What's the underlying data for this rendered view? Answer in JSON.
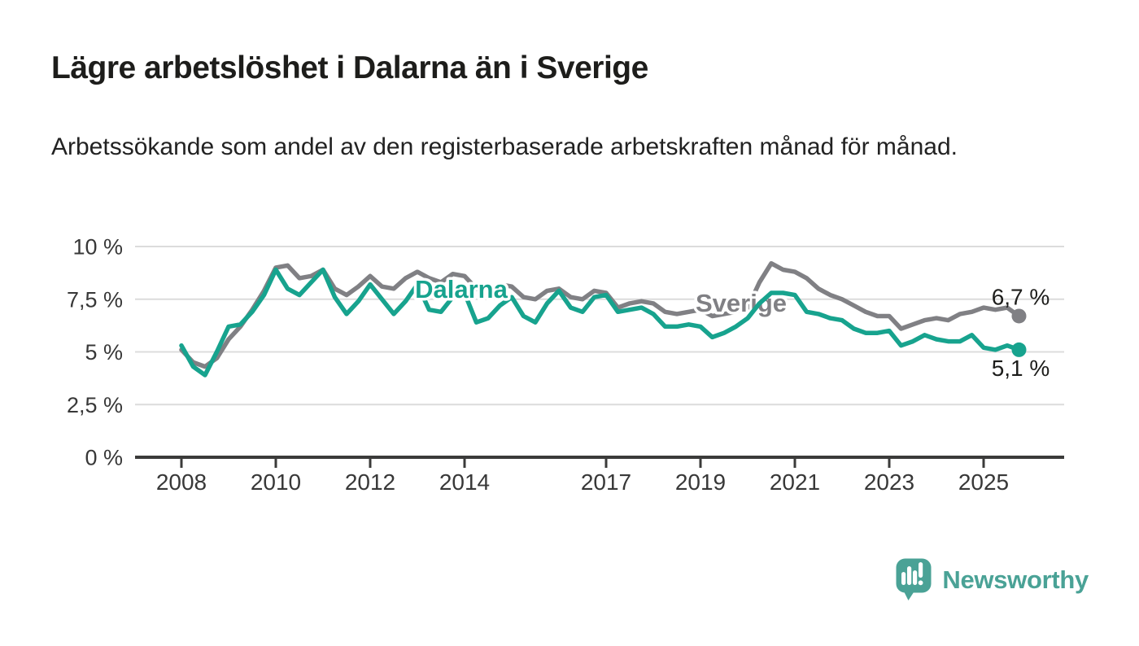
{
  "title": "Lägre arbetslöshet i Dalarna än i Sverige",
  "subtitle": "Arbetssökande som andel av den registerbaserade arbetskraften månad för månad.",
  "branding": {
    "name": "Newsworthy"
  },
  "colors": {
    "dalarna": "#17a38e",
    "sverige": "#808084",
    "title_text": "#1d1d1b",
    "axis_text": "#383838",
    "gridline": "#dcdcdc",
    "axis_line": "#3b3b3a",
    "value_label": "#1d1d1b",
    "brand_teal": "#4aa296",
    "background": "#ffffff"
  },
  "chart_data": {
    "type": "line",
    "unit": "%",
    "grid": true,
    "ylim": [
      0,
      10
    ],
    "yticks": [
      {
        "value": 10,
        "label": "10 %"
      },
      {
        "value": 7.5,
        "label": "7,5 %"
      },
      {
        "value": 5,
        "label": "5 %"
      },
      {
        "value": 2.5,
        "label": "2,5 %"
      },
      {
        "value": 0,
        "label": "0 %"
      }
    ],
    "xticks": [
      {
        "value": 2008,
        "label": "2008"
      },
      {
        "value": 2010,
        "label": "2010"
      },
      {
        "value": 2012,
        "label": "2012"
      },
      {
        "value": 2014,
        "label": "2014"
      },
      {
        "value": 2017,
        "label": "2017"
      },
      {
        "value": 2019,
        "label": "2019"
      },
      {
        "value": 2021,
        "label": "2021"
      },
      {
        "value": 2023,
        "label": "2023"
      },
      {
        "value": 2025,
        "label": "2025"
      }
    ],
    "x": [
      2008.0,
      2008.25,
      2008.5,
      2008.75,
      2009.0,
      2009.25,
      2009.5,
      2009.75,
      2010.0,
      2010.25,
      2010.5,
      2010.75,
      2011.0,
      2011.25,
      2011.5,
      2011.75,
      2012.0,
      2012.25,
      2012.5,
      2012.75,
      2013.0,
      2013.25,
      2013.5,
      2013.75,
      2014.0,
      2014.25,
      2014.5,
      2014.75,
      2015.0,
      2015.25,
      2015.5,
      2015.75,
      2016.0,
      2016.25,
      2016.5,
      2016.75,
      2017.0,
      2017.25,
      2017.5,
      2017.75,
      2018.0,
      2018.25,
      2018.5,
      2018.75,
      2019.0,
      2019.25,
      2019.5,
      2019.75,
      2020.0,
      2020.25,
      2020.5,
      2020.75,
      2021.0,
      2021.25,
      2021.5,
      2021.75,
      2022.0,
      2022.25,
      2022.5,
      2022.75,
      2023.0,
      2023.25,
      2023.5,
      2023.75,
      2024.0,
      2024.25,
      2024.5,
      2024.75,
      2025.0,
      2025.25,
      2025.5,
      2025.75
    ],
    "series": [
      {
        "name": "Sverige",
        "color_key": "sverige",
        "end_label": "6,7 %",
        "values": [
          5.1,
          4.5,
          4.3,
          4.7,
          5.6,
          6.2,
          7.0,
          7.9,
          9.0,
          9.1,
          8.5,
          8.6,
          8.9,
          8.0,
          7.7,
          8.1,
          8.6,
          8.1,
          8.0,
          8.5,
          8.8,
          8.5,
          8.3,
          8.7,
          8.6,
          8.0,
          7.9,
          8.2,
          8.1,
          7.6,
          7.5,
          7.9,
          8.0,
          7.6,
          7.5,
          7.9,
          7.8,
          7.1,
          7.3,
          7.4,
          7.3,
          6.9,
          6.8,
          6.9,
          7.0,
          6.7,
          6.8,
          6.9,
          7.1,
          8.3,
          9.2,
          8.9,
          8.8,
          8.5,
          8.0,
          7.7,
          7.5,
          7.2,
          6.9,
          6.7,
          6.7,
          6.1,
          6.3,
          6.5,
          6.6,
          6.5,
          6.8,
          6.9,
          7.1,
          7.0,
          7.1,
          6.7
        ]
      },
      {
        "name": "Dalarna",
        "color_key": "dalarna",
        "end_label": "5,1 %",
        "values": [
          5.3,
          4.3,
          3.9,
          5.0,
          6.2,
          6.3,
          6.9,
          7.7,
          8.9,
          8.0,
          7.7,
          8.3,
          8.9,
          7.6,
          6.8,
          7.4,
          8.2,
          7.5,
          6.8,
          7.4,
          8.2,
          7.0,
          6.9,
          7.6,
          7.8,
          6.4,
          6.6,
          7.2,
          7.6,
          6.7,
          6.4,
          7.3,
          7.9,
          7.1,
          6.9,
          7.6,
          7.7,
          6.9,
          7.0,
          7.1,
          6.8,
          6.2,
          6.2,
          6.3,
          6.2,
          5.7,
          5.9,
          6.2,
          6.6,
          7.3,
          7.8,
          7.8,
          7.7,
          6.9,
          6.8,
          6.6,
          6.5,
          6.1,
          5.9,
          5.9,
          6.0,
          5.3,
          5.5,
          5.8,
          5.6,
          5.5,
          5.5,
          5.8,
          5.2,
          5.1,
          5.3,
          5.1
        ]
      }
    ]
  }
}
